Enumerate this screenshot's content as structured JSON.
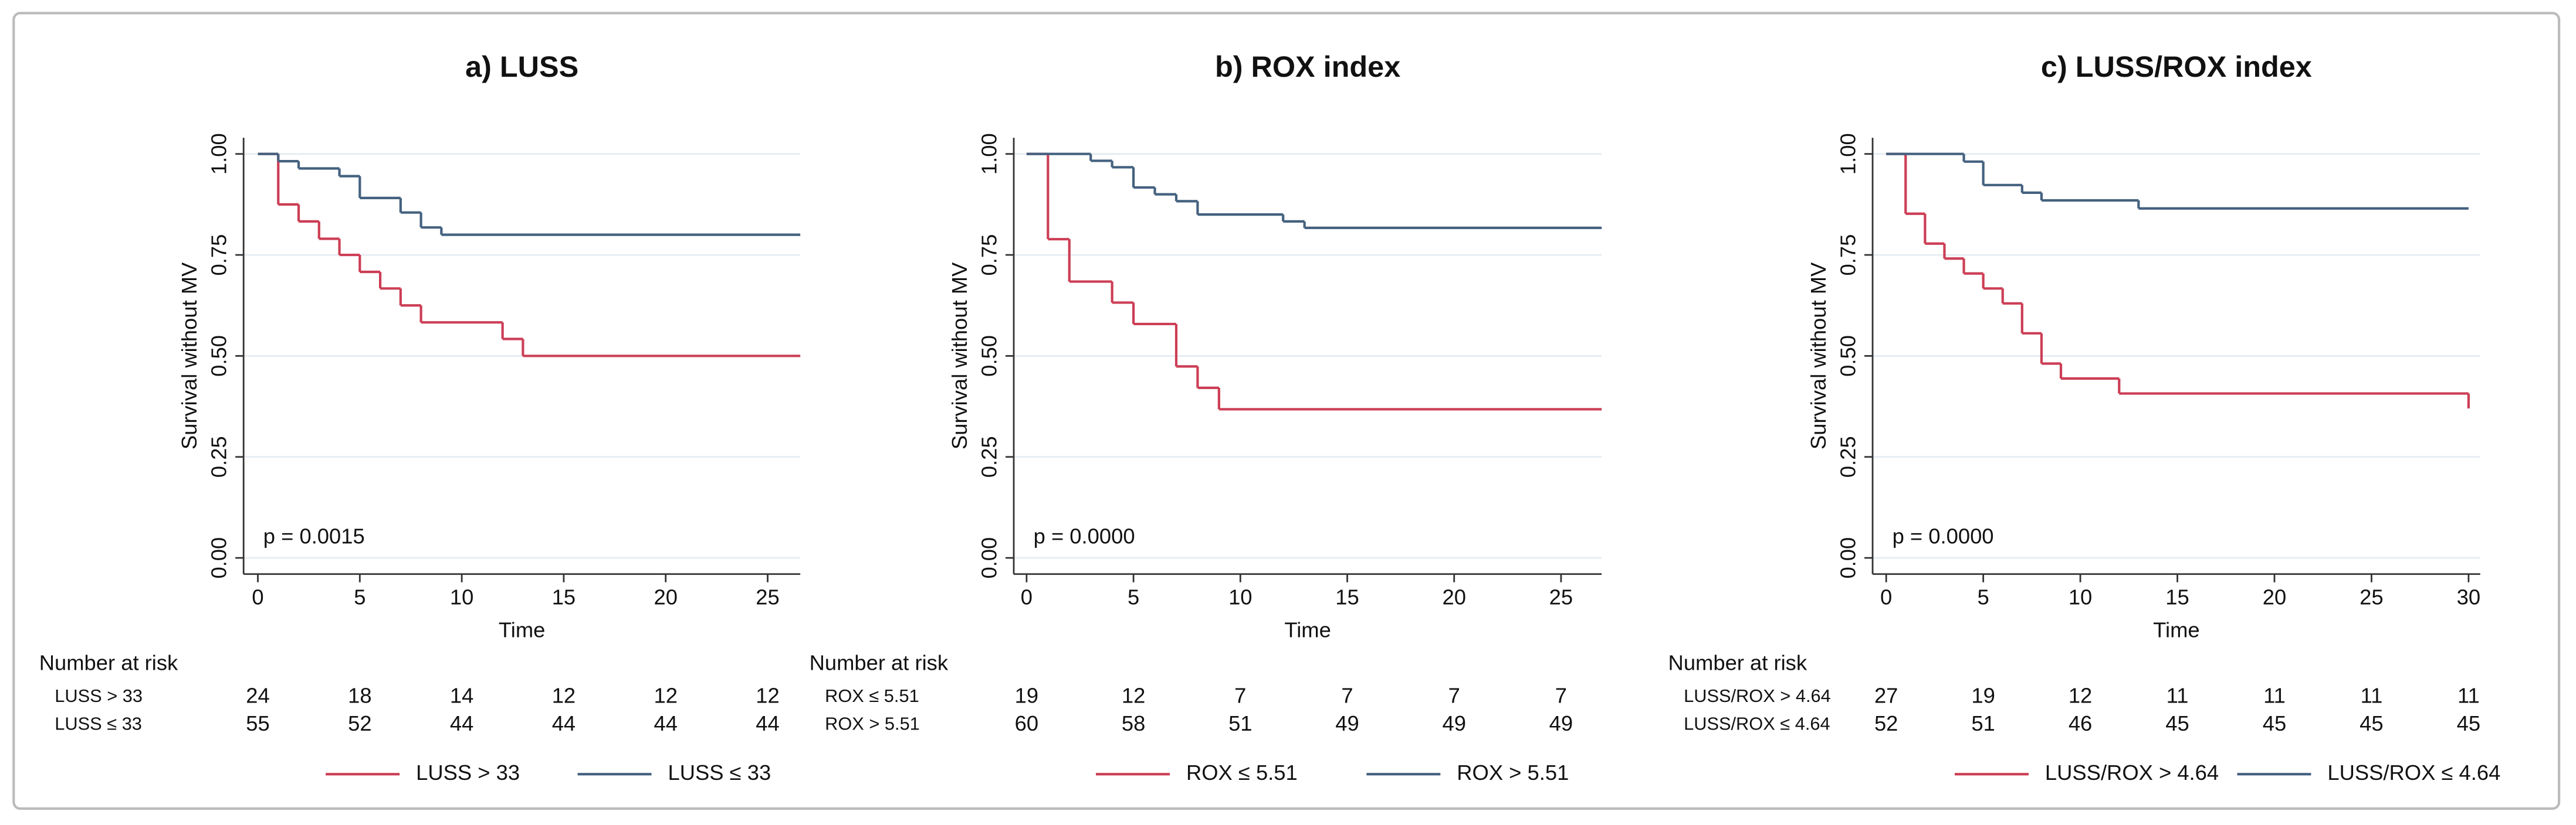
{
  "chart_data": [
    {
      "type": "step",
      "title": "a) LUSS",
      "xlabel": "Time",
      "ylabel": "Survival without MV",
      "annotation": "p = 0.0015",
      "xlim": [
        -0.7,
        26.6
      ],
      "ylim": [
        -0.04,
        1.04
      ],
      "xticks": [
        0,
        5,
        10,
        15,
        20,
        25
      ],
      "yticks": [
        {
          "value": 0,
          "label": "0.00"
        },
        {
          "value": 0.25,
          "label": "0.25"
        },
        {
          "value": 0.5,
          "label": "0.50"
        },
        {
          "value": 0.75,
          "label": "0.75"
        },
        {
          "value": 1,
          "label": "1.00"
        }
      ],
      "grid": true,
      "risk_title": "Number at risk",
      "series": [
        {
          "name": "LUSS > 33",
          "color": "#cc3e55",
          "x": [
            0,
            1,
            2,
            3,
            4,
            5,
            6,
            7,
            8,
            12,
            13,
            26.6
          ],
          "values": [
            1,
            0.875,
            0.833,
            0.79,
            0.75,
            0.708,
            0.667,
            0.625,
            0.583,
            0.542,
            0.5,
            0.5
          ],
          "at_risk": [
            24,
            18,
            14,
            12,
            12,
            12
          ]
        },
        {
          "name": "LUSS ≤ 33",
          "color": "#44617f",
          "x": [
            0,
            1,
            2,
            4,
            5,
            7,
            8,
            9,
            26.6
          ],
          "values": [
            1,
            0.982,
            0.964,
            0.945,
            0.891,
            0.855,
            0.818,
            0.8,
            0.8
          ],
          "at_risk": [
            55,
            52,
            44,
            44,
            44,
            44
          ]
        }
      ]
    },
    {
      "type": "step",
      "title": "b) ROX index",
      "xlabel": "Time",
      "ylabel": "Survival without MV",
      "annotation": "p = 0.0000",
      "xlim": [
        -0.6,
        26.9
      ],
      "ylim": [
        -0.04,
        1.04
      ],
      "xticks": [
        0,
        5,
        10,
        15,
        20,
        25
      ],
      "yticks": [
        {
          "value": 0,
          "label": "0.00"
        },
        {
          "value": 0.25,
          "label": "0.25"
        },
        {
          "value": 0.5,
          "label": "0.50"
        },
        {
          "value": 0.75,
          "label": "0.75"
        },
        {
          "value": 1,
          "label": "1.00"
        }
      ],
      "grid": true,
      "risk_title": "Number at risk",
      "series": [
        {
          "name": "ROX ≤ 5.51",
          "color": "#cc3e55",
          "x": [
            0,
            1,
            2,
            4,
            5,
            7,
            8,
            9,
            26.9
          ],
          "values": [
            1,
            0.789,
            0.684,
            0.632,
            0.579,
            0.474,
            0.421,
            0.368,
            0.368
          ],
          "at_risk": [
            19,
            12,
            7,
            7,
            7,
            7
          ]
        },
        {
          "name": "ROX > 5.51",
          "color": "#44617f",
          "x": [
            0,
            3,
            4,
            5,
            6,
            7,
            8,
            12,
            13,
            26.9
          ],
          "values": [
            1,
            0.983,
            0.967,
            0.917,
            0.9,
            0.883,
            0.85,
            0.833,
            0.817,
            0.817
          ],
          "at_risk": [
            60,
            58,
            51,
            49,
            49,
            49
          ]
        }
      ]
    },
    {
      "type": "step",
      "title": "c) LUSS/ROX index",
      "xlabel": "Time",
      "ylabel": "Survival without MV",
      "annotation": "p = 0.0000",
      "xlim": [
        -0.7,
        30.6
      ],
      "ylim": [
        -0.04,
        1.04
      ],
      "xticks": [
        0,
        5,
        10,
        15,
        20,
        25,
        30
      ],
      "yticks": [
        {
          "value": 0,
          "label": "0.00"
        },
        {
          "value": 0.25,
          "label": "0.25"
        },
        {
          "value": 0.5,
          "label": "0.50"
        },
        {
          "value": 0.75,
          "label": "0.75"
        },
        {
          "value": 1,
          "label": "1.00"
        }
      ],
      "grid": true,
      "risk_title": "Number at risk",
      "series": [
        {
          "name": "LUSS/ROX > 4.64",
          "color": "#cc3e55",
          "x": [
            0,
            1,
            2,
            3,
            4,
            5,
            6,
            7,
            8,
            9,
            12,
            30
          ],
          "values": [
            1,
            0.852,
            0.778,
            0.741,
            0.704,
            0.667,
            0.63,
            0.556,
            0.481,
            0.444,
            0.407,
            0.37
          ],
          "at_risk": [
            27,
            19,
            12,
            11,
            11,
            11,
            11
          ]
        },
        {
          "name": "LUSS/ROX ≤ 4.64",
          "color": "#44617f",
          "x": [
            0,
            4,
            5,
            7,
            8,
            13,
            30
          ],
          "values": [
            1,
            0.981,
            0.923,
            0.904,
            0.885,
            0.865,
            0.865
          ],
          "at_risk": [
            52,
            51,
            46,
            45,
            45,
            45,
            45
          ]
        }
      ]
    }
  ]
}
